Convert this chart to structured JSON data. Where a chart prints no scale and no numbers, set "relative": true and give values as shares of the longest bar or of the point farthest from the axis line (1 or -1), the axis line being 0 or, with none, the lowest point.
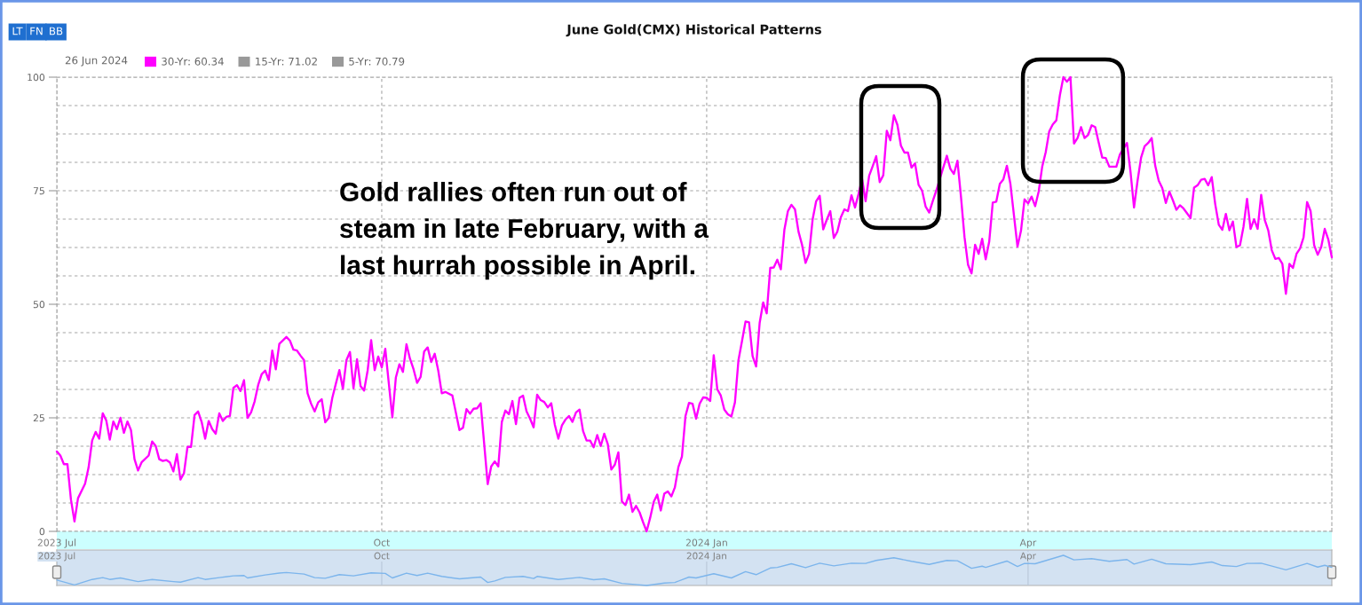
{
  "chart_data": [
    {
      "type": "line",
      "title": "June Gold(CMX) Historical Patterns",
      "annotations": [
        "LT",
        "FN",
        "BB",
        "26 Jun 2024",
        "Gold rallies often run out of\nsteam in late February, with a\nlast hurrah possible in April."
      ],
      "xlim": [
        "2023-07-01",
        "2024-06-26"
      ],
      "xticks": [
        {
          "value": "2023-07-01",
          "label": "2023 Jul"
        },
        {
          "value": "2023-10-01",
          "label": "Oct"
        },
        {
          "value": "2024-01-01",
          "label": "2024 Jan"
        },
        {
          "value": "2024-04-01",
          "label": "Apr"
        }
      ],
      "ylim": [
        0,
        100
      ],
      "yticks": [
        0,
        {
          "value": 6.25,
          "label": null
        },
        {
          "value": 12.5,
          "label": null
        },
        {
          "value": 18.75,
          "label": null
        },
        25,
        {
          "value": 31.25,
          "label": null
        },
        {
          "value": 37.5,
          "label": null
        },
        {
          "value": 43.75,
          "label": null
        },
        50,
        {
          "value": 56.25,
          "label": null
        },
        {
          "value": 62.5,
          "label": null
        },
        {
          "value": 68.75,
          "label": null
        },
        75,
        {
          "value": 81.25,
          "label": null
        },
        {
          "value": 87.5,
          "label": null
        },
        {
          "value": 93.75,
          "label": null
        },
        100
      ],
      "grid": true,
      "legend": "top left",
      "series": [
        {
          "name": "30-Yr: 60.34",
          "color": "#ff00ff",
          "x": [
            "2023-07-01",
            "2023-07-02",
            "2023-07-03",
            "2023-07-04",
            "2023-07-05",
            "2023-07-06",
            "2023-07-07",
            "2023-07-09",
            "2023-07-10",
            "2023-07-11",
            "2023-07-12",
            "2023-07-13",
            "2023-07-14",
            "2023-07-15",
            "2023-07-16",
            "2023-07-17",
            "2023-07-18",
            "2023-07-19",
            "2023-07-20",
            "2023-07-21",
            "2023-07-22",
            "2023-07-23",
            "2023-07-24",
            "2023-07-25",
            "2023-07-27",
            "2023-07-28",
            "2023-07-29",
            "2023-07-30",
            "2023-07-31",
            "2023-08-01",
            "2023-08-02",
            "2023-08-03",
            "2023-08-04",
            "2023-08-05",
            "2023-08-06",
            "2023-08-07",
            "2023-08-08",
            "2023-08-09",
            "2023-08-10",
            "2023-08-11",
            "2023-08-12",
            "2023-08-13",
            "2023-08-14",
            "2023-08-15",
            "2023-08-16",
            "2023-08-17",
            "2023-08-18",
            "2023-08-19",
            "2023-08-20",
            "2023-08-21",
            "2023-08-22",
            "2023-08-23",
            "2023-08-24",
            "2023-08-25",
            "2023-08-26",
            "2023-08-27",
            "2023-08-28",
            "2023-08-29",
            "2023-08-30",
            "2023-08-31",
            "2023-09-01",
            "2023-09-02",
            "2023-09-04",
            "2023-09-05",
            "2023-09-06",
            "2023-09-07",
            "2023-09-08",
            "2023-09-09",
            "2023-09-10",
            "2023-09-11",
            "2023-09-12",
            "2023-09-13",
            "2023-09-14",
            "2023-09-15",
            "2023-09-16",
            "2023-09-17",
            "2023-09-18",
            "2023-09-19",
            "2023-09-20",
            "2023-09-21",
            "2023-09-22",
            "2023-09-23",
            "2023-09-24",
            "2023-09-25",
            "2023-09-26",
            "2023-09-27",
            "2023-09-28",
            "2023-09-29",
            "2023-09-30",
            "2023-10-01",
            "2023-10-02",
            "2023-10-03",
            "2023-10-04",
            "2023-10-05",
            "2023-10-06",
            "2023-10-07",
            "2023-10-08",
            "2023-10-09",
            "2023-10-10",
            "2023-10-11",
            "2023-10-12",
            "2023-10-13",
            "2023-10-14",
            "2023-10-15",
            "2023-10-16",
            "2023-10-17",
            "2023-10-18",
            "2023-10-19",
            "2023-10-21",
            "2023-10-22",
            "2023-10-23",
            "2023-10-24",
            "2023-10-25",
            "2023-10-26",
            "2023-10-27",
            "2023-10-28",
            "2023-10-29",
            "2023-10-31",
            "2023-11-01",
            "2023-11-02",
            "2023-11-03",
            "2023-11-04",
            "2023-11-05",
            "2023-11-06",
            "2023-11-07",
            "2023-11-08",
            "2023-11-09",
            "2023-11-10",
            "2023-11-11",
            "2023-11-12",
            "2023-11-13",
            "2023-11-14",
            "2023-11-15",
            "2023-11-16",
            "2023-11-17",
            "2023-11-18",
            "2023-11-19",
            "2023-11-20",
            "2023-11-21",
            "2023-11-22",
            "2023-11-23",
            "2023-11-24",
            "2023-11-25",
            "2023-11-26",
            "2023-11-27",
            "2023-11-28",
            "2023-11-29",
            "2023-11-30",
            "2023-12-01",
            "2023-12-02",
            "2023-12-03",
            "2023-12-04",
            "2023-12-05",
            "2023-12-06",
            "2023-12-07",
            "2023-12-08",
            "2023-12-09",
            "2023-12-10",
            "2023-12-11",
            "2023-12-12",
            "2023-12-13",
            "2023-12-14",
            "2023-12-15",
            "2023-12-16",
            "2023-12-17",
            "2023-12-18",
            "2023-12-19",
            "2023-12-20",
            "2023-12-21",
            "2023-12-22",
            "2023-12-23",
            "2023-12-24",
            "2023-12-25",
            "2023-12-26",
            "2023-12-27",
            "2023-12-28",
            "2023-12-29",
            "2023-12-30",
            "2023-12-31",
            "2024-01-01",
            "2024-01-02",
            "2024-01-03",
            "2024-01-04",
            "2024-01-05",
            "2024-01-06",
            "2024-01-07",
            "2024-01-08",
            "2024-01-09",
            "2024-01-10",
            "2024-01-11",
            "2024-01-12",
            "2024-01-13",
            "2024-01-14",
            "2024-01-15",
            "2024-01-16",
            "2024-01-17",
            "2024-01-18",
            "2024-01-19",
            "2024-01-20",
            "2024-01-21",
            "2024-01-22",
            "2024-01-23",
            "2024-01-24",
            "2024-01-25",
            "2024-01-26",
            "2024-01-27",
            "2024-01-28",
            "2024-01-29",
            "2024-01-30",
            "2024-01-31",
            "2024-02-01",
            "2024-02-02",
            "2024-02-03",
            "2024-02-04",
            "2024-02-05",
            "2024-02-06",
            "2024-02-07",
            "2024-02-08",
            "2024-02-09",
            "2024-02-10",
            "2024-02-11",
            "2024-02-12",
            "2024-02-13",
            "2024-02-14",
            "2024-02-15",
            "2024-02-16",
            "2024-02-17",
            "2024-02-18",
            "2024-02-19",
            "2024-02-20",
            "2024-02-21",
            "2024-02-22",
            "2024-02-23",
            "2024-02-24",
            "2024-02-25",
            "2024-02-26",
            "2024-02-27",
            "2024-02-28",
            "2024-02-29",
            "2024-03-01",
            "2024-03-02",
            "2024-03-03",
            "2024-03-04",
            "2024-03-05",
            "2024-03-06",
            "2024-03-09",
            "2024-03-10",
            "2024-03-11",
            "2024-03-12",
            "2024-03-13",
            "2024-03-14",
            "2024-03-15",
            "2024-03-16",
            "2024-03-17",
            "2024-03-18",
            "2024-03-19",
            "2024-03-20",
            "2024-03-21",
            "2024-03-22",
            "2024-03-23",
            "2024-03-24",
            "2024-03-25",
            "2024-03-26",
            "2024-03-27",
            "2024-03-28",
            "2024-03-29",
            "2024-03-30",
            "2024-03-31",
            "2024-04-01",
            "2024-04-02",
            "2024-04-03",
            "2024-04-04",
            "2024-04-05",
            "2024-04-06",
            "2024-04-07",
            "2024-04-08",
            "2024-04-09",
            "2024-04-10",
            "2024-04-11",
            "2024-04-12",
            "2024-04-13",
            "2024-04-14",
            "2024-04-15",
            "2024-04-16",
            "2024-04-17",
            "2024-04-18",
            "2024-04-19",
            "2024-04-20",
            "2024-04-21",
            "2024-04-22",
            "2024-04-23",
            "2024-04-24",
            "2024-04-25",
            "2024-04-26",
            "2024-04-27",
            "2024-04-29",
            "2024-04-30",
            "2024-05-01",
            "2024-05-02",
            "2024-05-03",
            "2024-05-04",
            "2024-05-05",
            "2024-05-06",
            "2024-05-07",
            "2024-05-08",
            "2024-05-09",
            "2024-05-10",
            "2024-05-11",
            "2024-05-12",
            "2024-05-13",
            "2024-05-14",
            "2024-05-15",
            "2024-05-17",
            "2024-05-18",
            "2024-05-19",
            "2024-05-20",
            "2024-05-21",
            "2024-05-22",
            "2024-05-23",
            "2024-05-24",
            "2024-05-25",
            "2024-05-26",
            "2024-05-27",
            "2024-05-28",
            "2024-05-29",
            "2024-05-30",
            "2024-05-31",
            "2024-06-01",
            "2024-06-02",
            "2024-06-03",
            "2024-06-04",
            "2024-06-05",
            "2024-06-06",
            "2024-06-07",
            "2024-06-08",
            "2024-06-09",
            "2024-06-10",
            "2024-06-11",
            "2024-06-12",
            "2024-06-13",
            "2024-06-14",
            "2024-06-15",
            "2024-06-16",
            "2024-06-17",
            "2024-06-18",
            "2024-06-19",
            "2024-06-20",
            "2024-06-21",
            "2024-06-22",
            "2024-06-23",
            "2024-06-24",
            "2024-06-25",
            "2024-06-26"
          ],
          "values": [
            17.6,
            16.7,
            14.8,
            14.8,
            7.0,
            2.2,
            7.3,
            10.5,
            14.1,
            20.0,
            21.9,
            20.4,
            26.0,
            24.4,
            20.2,
            24.2,
            22.5,
            25.0,
            21.7,
            24.2,
            22.3,
            15.9,
            13.4,
            15.2,
            16.7,
            19.8,
            18.8,
            15.9,
            15.5,
            15.7,
            15.2,
            13.2,
            17.0,
            11.4,
            12.8,
            18.6,
            18.6,
            25.6,
            26.4,
            24.1,
            20.4,
            24.3,
            22.5,
            21.5,
            26.0,
            24.3,
            25.2,
            25.4,
            31.6,
            32.2,
            30.9,
            33.3,
            25.0,
            26.2,
            28.6,
            32.2,
            34.6,
            35.4,
            33.3,
            39.8,
            35.7,
            41.3,
            42.8,
            42.0,
            40.0,
            39.8,
            38.7,
            37.7,
            30.4,
            28.1,
            26.4,
            28.4,
            29.1,
            24.0,
            25.0,
            29.4,
            32.5,
            35.5,
            31.4,
            37.7,
            39.5,
            31.5,
            37.9,
            32.0,
            31.0,
            35.4,
            42.1,
            35.5,
            38.5,
            36.1,
            40.2,
            32.6,
            25.1,
            33.9,
            36.8,
            35.1,
            41.2,
            38.0,
            35.7,
            32.7,
            34.0,
            39.6,
            40.5,
            37.3,
            39.1,
            35.4,
            30.4,
            30.7,
            29.9,
            26.1,
            22.3,
            22.8,
            26.9,
            25.9,
            27.0,
            27.1,
            28.2,
            10.4,
            14.3,
            15.4,
            14.3,
            24.1,
            26.6,
            25.8,
            28.7,
            23.6,
            29.4,
            29.9,
            26.4,
            24.8,
            22.9,
            30.1,
            28.9,
            28.5,
            27.3,
            28.2,
            23.5,
            20.4,
            23.3,
            24.6,
            25.4,
            24.1,
            26.2,
            26.8,
            22.1,
            20.0,
            20.0,
            18.5,
            21.2,
            18.8,
            21.5,
            19.2,
            13.6,
            14.7,
            17.4,
            6.6,
            5.8,
            8.1,
            4.3,
            5.6,
            4.2,
            2.0,
            0.0,
            3.0,
            6.5,
            8.1,
            4.6,
            8.3,
            8.8,
            7.7,
            9.7,
            14.2,
            16.5,
            25.4,
            28.3,
            28.1,
            24.8,
            28.1,
            29.5,
            29.4,
            28.7,
            38.8,
            31.3,
            29.9,
            26.8,
            25.8,
            25.3,
            28.4,
            37.7,
            41.9,
            46.2,
            46.0,
            38.6,
            36.3,
            45.9,
            50.4,
            48.0,
            58.0,
            58.1,
            59.8,
            57.7,
            66.4,
            70.5,
            71.9,
            70.9,
            66.0,
            63.1,
            59.1,
            61.1,
            68.7,
            72.7,
            73.9,
            66.5,
            68.6,
            70.5,
            64.6,
            66.0,
            69.2,
            70.9,
            70.5,
            74.0,
            71.3,
            74.3,
            77.6,
            72.7,
            78.3,
            80.4,
            82.6,
            76.9,
            78.4,
            88.2,
            86.1,
            91.6,
            89.5,
            84.9,
            83.4,
            83.4,
            80.1,
            81.0,
            76.3,
            75.0,
            71.5,
            70.2,
            72.7,
            75.0,
            82.7,
            79.8,
            78.7,
            81.6,
            73.7,
            64.8,
            58.7,
            56.8,
            63.1,
            61.1,
            64.4,
            59.9,
            63.8,
            72.4,
            72.6,
            76.5,
            77.5,
            80.5,
            76.5,
            69.6,
            62.7,
            66.2,
            73.1,
            72.2,
            73.7,
            71.6,
            74.8,
            80.3,
            83.5,
            88.1,
            89.6,
            90.5,
            96.0,
            100,
            99.0,
            100,
            85.4,
            86.6,
            89.0,
            86.6,
            87.3,
            89.4,
            89.0,
            85.6,
            82.3,
            82.2,
            80.3,
            80.3,
            80.3,
            83.0,
            85.5,
            79.2,
            71.3,
            77.2,
            82.3,
            84.8,
            85.5,
            86.6,
            80.5,
            77.2,
            75.6,
            72.3,
            74.8,
            72.9,
            70.8,
            71.8,
            71.1,
            69.0,
            75.7,
            76.2,
            77.4,
            77.6,
            76.2,
            78.0,
            72.0,
            67.5,
            66.4,
            69.9,
            66.3,
            68.2,
            62.6,
            63.0,
            67.1,
            73.2,
            66.6,
            68.7,
            66.6,
            74.1,
            68.6,
            66.3,
            61.9,
            60.0,
            60.2,
            58.9,
            52.3,
            58.9,
            58.0,
            61.1,
            62.3,
            64.7,
            72.5,
            70.5,
            63.0,
            60.9,
            62.6,
            66.6,
            64.3,
            60.34
          ]
        },
        {
          "name": "15-Yr: 71.02",
          "color": "#999999"
        },
        {
          "name": "5-Yr: 70.79",
          "color": "#999999"
        }
      ]
    },
    {
      "type": "line",
      "relative": true,
      "xlim": [
        "2023-07-01",
        "2024-06-26"
      ],
      "xticks": [
        {
          "value": "2023-07-01",
          "label": "2023 Jul"
        },
        {
          "value": "2023-10-01",
          "label": "Oct"
        },
        {
          "value": "2024-01-01",
          "label": "2024 Jan"
        },
        {
          "value": "2024-04-01",
          "label": "Apr"
        }
      ],
      "tick_labels": "x",
      "grid": "x",
      "series": [
        {
          "color": "#7cb5ec",
          "x": [
            "2023-07-01",
            "2023-07-06",
            "2023-07-11",
            "2023-07-14",
            "2023-07-16",
            "2023-07-19",
            "2023-07-24",
            "2023-07-28",
            "2023-08-03",
            "2023-08-05",
            "2023-08-10",
            "2023-08-12",
            "2023-08-16",
            "2023-08-20",
            "2023-08-23",
            "2023-08-24",
            "2023-08-29",
            "2023-09-02",
            "2023-09-04",
            "2023-09-09",
            "2023-09-12",
            "2023-09-15",
            "2023-09-19",
            "2023-09-23",
            "2023-09-28",
            "2023-10-02",
            "2023-10-04",
            "2023-10-08",
            "2023-10-11",
            "2023-10-14",
            "2023-10-18",
            "2023-10-23",
            "2023-10-29",
            "2023-10-31",
            "2023-11-02",
            "2023-11-05",
            "2023-11-10",
            "2023-11-13",
            "2023-11-14",
            "2023-11-20",
            "2023-11-26",
            "2023-11-30",
            "2023-12-03",
            "2023-12-08",
            "2023-12-11",
            "2023-12-15",
            "2023-12-20",
            "2023-12-23",
            "2023-12-27",
            "2023-12-29",
            "2024-01-03",
            "2024-01-08",
            "2024-01-12",
            "2024-01-15",
            "2024-01-19",
            "2024-01-21",
            "2024-01-25",
            "2024-01-29",
            "2024-02-02",
            "2024-02-06",
            "2024-02-11",
            "2024-02-15",
            "2024-02-18",
            "2024-02-23",
            "2024-02-28",
            "2024-03-04",
            "2024-03-09",
            "2024-03-12",
            "2024-03-16",
            "2024-03-19",
            "2024-03-20",
            "2024-03-26",
            "2024-03-29",
            "2024-03-31",
            "2024-04-03",
            "2024-04-11",
            "2024-04-14",
            "2024-04-19",
            "2024-04-24",
            "2024-04-29",
            "2024-05-01",
            "2024-05-06",
            "2024-05-10",
            "2024-05-17",
            "2024-05-23",
            "2024-05-26",
            "2024-05-30",
            "2024-06-02",
            "2024-06-06",
            "2024-06-13",
            "2024-06-19",
            "2024-06-22",
            "2024-06-24",
            "2024-06-26"
          ],
          "values": [
            0.18,
            0.02,
            0.2,
            0.26,
            0.2,
            0.25,
            0.13,
            0.2,
            0.13,
            0.11,
            0.26,
            0.2,
            0.26,
            0.32,
            0.33,
            0.25,
            0.35,
            0.41,
            0.43,
            0.38,
            0.26,
            0.24,
            0.36,
            0.32,
            0.42,
            0.4,
            0.25,
            0.41,
            0.33,
            0.41,
            0.3,
            0.22,
            0.28,
            0.1,
            0.15,
            0.27,
            0.3,
            0.23,
            0.3,
            0.2,
            0.27,
            0.19,
            0.22,
            0.07,
            0.04,
            0,
            0.08,
            0.1,
            0.28,
            0.25,
            0.39,
            0.25,
            0.46,
            0.36,
            0.58,
            0.6,
            0.72,
            0.59,
            0.74,
            0.65,
            0.74,
            0.73,
            0.83,
            0.92,
            0.8,
            0.7,
            0.83,
            0.82,
            0.57,
            0.64,
            0.6,
            0.81,
            0.63,
            0.73,
            0.72,
            1,
            0.85,
            0.89,
            0.8,
            0.86,
            0.71,
            0.87,
            0.72,
            0.69,
            0.78,
            0.66,
            0.63,
            0.73,
            0.74,
            0.52,
            0.73,
            0.61,
            0.67,
            0.6
          ]
        }
      ]
    }
  ]
}
